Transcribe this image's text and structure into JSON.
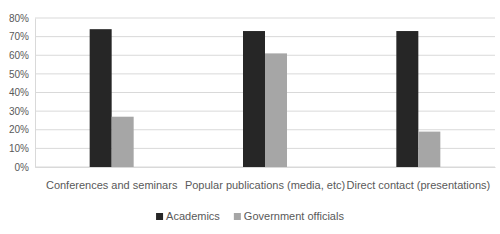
{
  "chart_data": {
    "type": "bar",
    "categories": [
      "Conferences and seminars",
      "Popular publications (media, etc)",
      "Direct contact (presentations)"
    ],
    "series": [
      {
        "name": "Academics",
        "color": "#262626",
        "values": [
          74,
          73,
          73
        ]
      },
      {
        "name": "Government officials",
        "color": "#a6a6a6",
        "values": [
          27,
          61,
          19
        ]
      }
    ],
    "ylim": [
      0,
      80
    ],
    "yticks": [
      {
        "value": 0,
        "label": "0%"
      },
      {
        "value": 10,
        "label": "10%"
      },
      {
        "value": 20,
        "label": "20%"
      },
      {
        "value": 30,
        "label": "30%"
      },
      {
        "value": 40,
        "label": "40%"
      },
      {
        "value": 50,
        "label": "50%"
      },
      {
        "value": 60,
        "label": "60%"
      },
      {
        "value": 70,
        "label": "70%"
      },
      {
        "value": 80,
        "label": "80%"
      }
    ],
    "grid": true,
    "legend": "bottom"
  }
}
